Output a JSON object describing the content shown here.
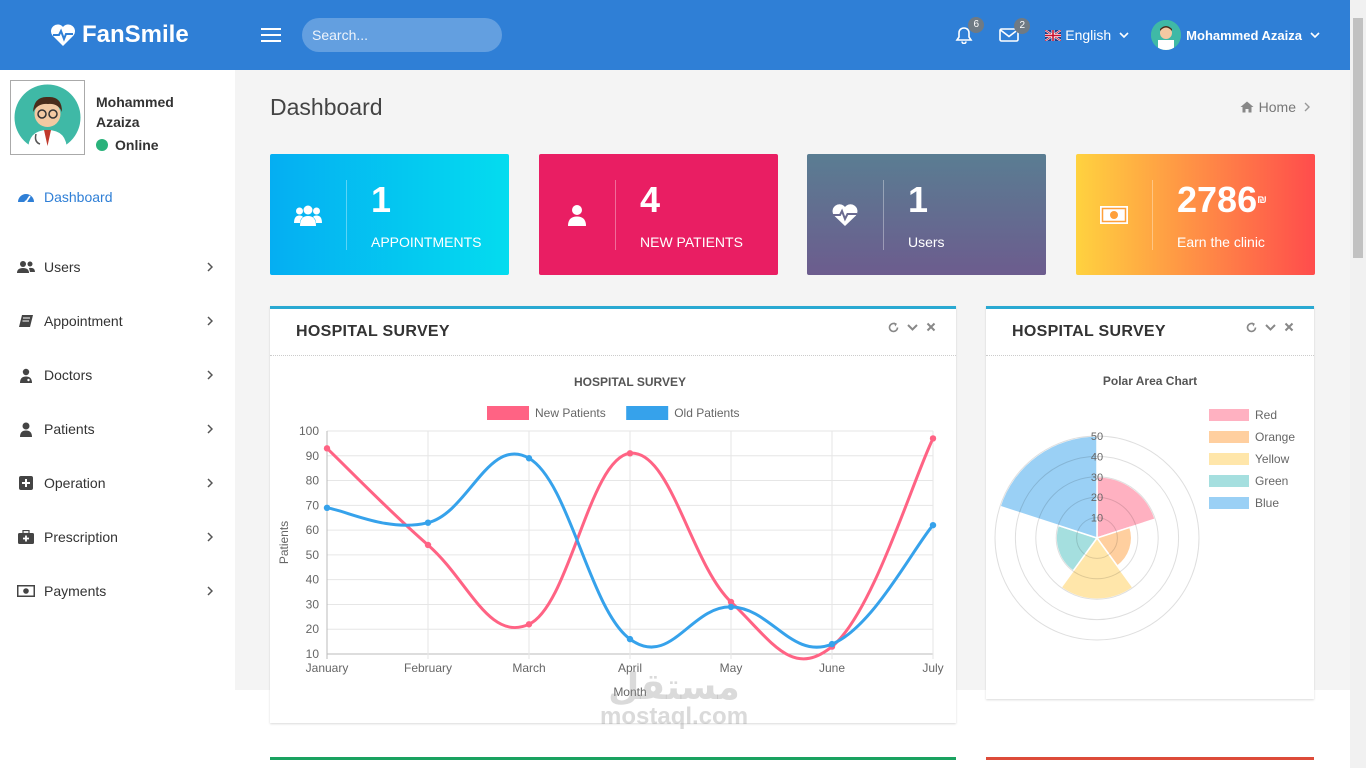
{
  "brand": {
    "name": "FanSmile"
  },
  "search": {
    "placeholder": "Search..."
  },
  "header": {
    "notifications_count": "6",
    "messages_count": "2",
    "language": "English",
    "user_name": "Mohammed Azaiza"
  },
  "sidebar": {
    "profile": {
      "name": "Mohammed Azaiza",
      "status": "Online"
    },
    "items": [
      {
        "label": "Dashboard",
        "icon": "dashboard-icon"
      },
      {
        "label": "Users",
        "icon": "users-icon"
      },
      {
        "label": "Appointment",
        "icon": "book-icon"
      },
      {
        "label": "Doctors",
        "icon": "doctor-icon"
      },
      {
        "label": "Patients",
        "icon": "user-icon"
      },
      {
        "label": "Operation",
        "icon": "plus-square-icon"
      },
      {
        "label": "Prescription",
        "icon": "medkit-icon"
      },
      {
        "label": "Payments",
        "icon": "money-icon"
      }
    ]
  },
  "page": {
    "title": "Dashboard",
    "breadcrumb_home": "Home"
  },
  "cards": [
    {
      "value": "1",
      "label": "APPOINTMENTS",
      "icon": "users-icon"
    },
    {
      "value": "4",
      "label": "NEW PATIENTS",
      "icon": "user-icon"
    },
    {
      "value": "1",
      "label": "Users",
      "icon": "heartbeat-icon"
    },
    {
      "value": "2786",
      "label": "Earn the clinic",
      "icon": "money-icon",
      "currency": "₪"
    }
  ],
  "panels": {
    "line": {
      "title": "HOSPITAL SURVEY"
    },
    "polar": {
      "title": "HOSPITAL SURVEY"
    }
  },
  "chart_data": [
    {
      "type": "line",
      "title": "HOSPITAL SURVEY",
      "xlabel": "Month",
      "ylabel": "Patients",
      "categories": [
        "January",
        "February",
        "March",
        "April",
        "May",
        "June",
        "July"
      ],
      "ylim": [
        10,
        100
      ],
      "yticks": [
        10,
        20,
        30,
        40,
        50,
        60,
        70,
        80,
        90,
        100
      ],
      "grid": true,
      "legend_position": "top",
      "series": [
        {
          "name": "New Patients",
          "color": "#ff6384",
          "values": [
            93,
            54,
            22,
            91,
            31,
            13,
            97
          ]
        },
        {
          "name": "Old Patients",
          "color": "#36a2eb",
          "values": [
            69,
            63,
            89,
            16,
            29,
            14,
            62
          ]
        }
      ]
    },
    {
      "type": "polar",
      "title": "Polar Area Chart",
      "rlim": [
        0,
        50
      ],
      "rticks": [
        10,
        20,
        30,
        40,
        50
      ],
      "legend_position": "right",
      "categories": [
        "Red",
        "Orange",
        "Yellow",
        "Green",
        "Blue"
      ],
      "values": [
        30,
        17,
        30,
        20,
        50
      ],
      "colors": [
        "#ffb1c1",
        "#ffcf9f",
        "#ffe6aa",
        "#a5dfdf",
        "#9ad0f5"
      ]
    }
  ],
  "watermark": {
    "arabic": "مستقل",
    "latin": "mostaql.com"
  }
}
